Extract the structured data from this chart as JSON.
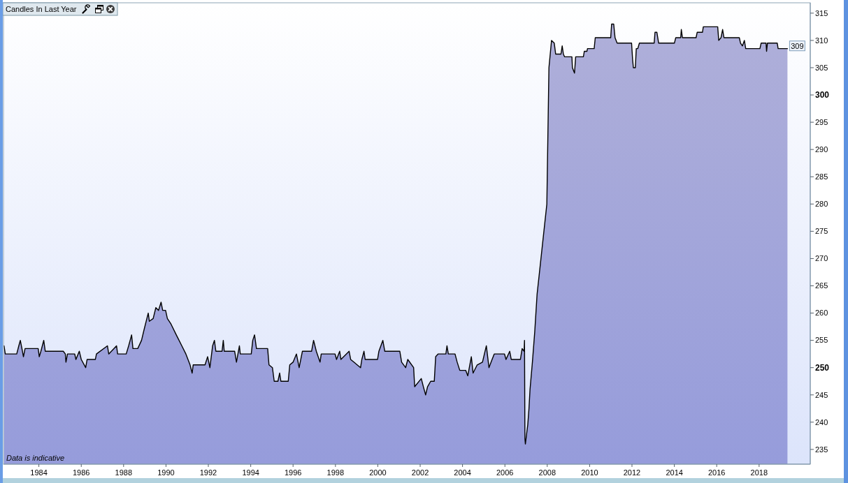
{
  "chart_data": {
    "type": "area",
    "title": "Candles In Last Year",
    "annotations": [
      "Data is indicative",
      {
        "text": "309",
        "x": "2019-05-05",
        "y": 309
      }
    ],
    "xlim": [
      "1982-05-01",
      "2020-06-01"
    ],
    "xticks": [
      "1984",
      "1986",
      "1988",
      "1990",
      "1992",
      "1994",
      "1996",
      "1998",
      "2000",
      "2002",
      "2004",
      "2006",
      "2008",
      "2010",
      "2012",
      "2014",
      "2016",
      "2018"
    ],
    "ylim": [
      232.3,
      316.9
    ],
    "yticks": [
      235,
      240,
      245,
      250,
      255,
      260,
      265,
      270,
      275,
      280,
      285,
      290,
      295,
      300,
      305,
      310,
      315
    ],
    "x": [
      "1982-05-10",
      "1982-06-01",
      "1982-12-15",
      "1983-01-20",
      "1983-02-15",
      "1983-03-15",
      "1983-04-10",
      "1983-05-08",
      "1983-12-20",
      "1984-01-08",
      "1984-02-05",
      "1984-03-25",
      "1984-04-20",
      "1985-02-25",
      "1985-04-01",
      "1985-04-12",
      "1985-05-08",
      "1985-09-10",
      "1985-10-01",
      "1985-11-28",
      "1986-01-01",
      "1986-03-18",
      "1986-04-12",
      "1986-09-01",
      "1986-09-20",
      "1987-03-28",
      "1987-04-20",
      "1987-09-01",
      "1987-09-20",
      "1988-02-15",
      "1988-03-28",
      "1988-05-18",
      "1988-06-10",
      "1988-09-01",
      "1988-11-05",
      "1988-12-20",
      "1989-02-05",
      "1989-03-01",
      "1989-03-20",
      "1989-05-25",
      "1989-07-10",
      "1989-08-25",
      "1989-10-08",
      "1989-11-05",
      "1989-12-25",
      "1990-01-25",
      "1990-03-28",
      "1990-06-28",
      "1990-10-01",
      "1990-12-10",
      "1991-02-20",
      "1991-03-28",
      "1991-04-15",
      "1991-11-05",
      "1991-12-20",
      "1992-01-28",
      "1992-03-15",
      "1992-04-15",
      "1992-05-10",
      "1992-08-25",
      "1992-09-15",
      "1992-10-01",
      "1993-03-30",
      "1993-04-30",
      "1993-06-20",
      "1993-07-05",
      "1994-01-10",
      "1994-02-05",
      "1994-03-08",
      "1994-04-10",
      "1994-10-20",
      "1994-11-12",
      "1995-01-10",
      "1995-02-10",
      "1995-04-15",
      "1995-05-15",
      "1995-06-05",
      "1995-10-10",
      "1995-11-05",
      "1996-01-01",
      "1996-02-28",
      "1996-04-15",
      "1996-06-10",
      "1996-11-15",
      "1996-12-20",
      "1997-02-05",
      "1997-04-10",
      "1997-05-01",
      "1997-12-25",
      "1998-01-20",
      "1998-03-15",
      "1998-04-05",
      "1998-08-25",
      "1998-09-20",
      "1999-03-10",
      "1999-04-01",
      "1999-05-08",
      "1999-05-28",
      "1999-12-28",
      "2000-01-20",
      "2000-03-28",
      "2000-05-01",
      "2001-01-15",
      "2001-02-15",
      "2001-04-25",
      "2001-06-01",
      "2001-09-10",
      "2001-09-28",
      "2002-01-20",
      "2002-02-25",
      "2002-04-05",
      "2002-05-08",
      "2002-07-01",
      "2002-09-01",
      "2002-09-25",
      "2002-11-05",
      "2003-03-20",
      "2003-04-08",
      "2003-05-01",
      "2003-08-25",
      "2003-10-01",
      "2003-11-15",
      "2004-02-25",
      "2004-04-01",
      "2004-06-01",
      "2004-07-01",
      "2004-09-10",
      "2004-12-10",
      "2005-02-15",
      "2005-04-01",
      "2005-05-25",
      "2005-07-01",
      "2005-12-25",
      "2006-01-20",
      "2006-03-25",
      "2006-04-20",
      "2006-09-25",
      "2006-10-25",
      "2006-11-28",
      "2006-12-05",
      "2006-12-12",
      "2006-12-20",
      "2007-01-12",
      "2007-01-30",
      "2007-02-20",
      "2007-03-10",
      "2007-04-20",
      "2007-05-30",
      "2007-07-10",
      "2007-08-15",
      "2007-12-25",
      "2008-01-30",
      "2008-03-15",
      "2008-05-01",
      "2008-05-25",
      "2008-08-25",
      "2008-09-15",
      "2008-10-05",
      "2008-10-25",
      "2009-03-01",
      "2009-03-10",
      "2009-04-15",
      "2009-05-05",
      "2009-09-15",
      "2009-10-01",
      "2009-11-15",
      "2009-11-25",
      "2010-03-20",
      "2010-04-08",
      "2010-12-30",
      "2011-01-15",
      "2011-02-20",
      "2011-03-15",
      "2011-04-20",
      "2011-12-25",
      "2012-01-12",
      "2012-01-25",
      "2012-02-28",
      "2012-03-15",
      "2012-04-10",
      "2012-05-08",
      "2013-01-18",
      "2013-02-01",
      "2013-03-05",
      "2013-04-05",
      "2014-01-01",
      "2014-01-25",
      "2014-04-20",
      "2014-05-01",
      "2014-05-20",
      "2015-01-10",
      "2015-01-30",
      "2015-05-01",
      "2015-05-15",
      "2016-01-18",
      "2016-02-05",
      "2016-03-15",
      "2016-04-12",
      "2016-05-05",
      "2017-01-25",
      "2017-02-15",
      "2017-03-20",
      "2017-04-22",
      "2017-05-15",
      "2018-01-15",
      "2018-02-05",
      "2018-05-01",
      "2018-05-10",
      "2018-05-25",
      "2018-11-10",
      "2018-11-25",
      "2019-05-05"
    ],
    "series": [
      {
        "color": "#a3a6da",
        "values": [
          254,
          252.5,
          252.5,
          254,
          255,
          253.5,
          252,
          253.5,
          253.5,
          252,
          253,
          255,
          253,
          253,
          252.5,
          251,
          252.5,
          252.5,
          251.5,
          253,
          251.5,
          250,
          251.5,
          251.5,
          252.5,
          254,
          252.5,
          254,
          252.5,
          252.5,
          254,
          256,
          253.5,
          253.5,
          255,
          257,
          259,
          260,
          258.5,
          259,
          261,
          260.5,
          262,
          260.5,
          260.5,
          259,
          258,
          256,
          254,
          252.5,
          250.5,
          249,
          250.5,
          250.5,
          252,
          250,
          254,
          255,
          253,
          253,
          255,
          253,
          253,
          251,
          254,
          252.5,
          252.5,
          255,
          256,
          253.5,
          253.5,
          250.5,
          250,
          247.5,
          247.5,
          249,
          247.5,
          247.5,
          250.5,
          251,
          252.5,
          250,
          253,
          253,
          255,
          253,
          251,
          252.5,
          252.5,
          251.5,
          253,
          251.5,
          253,
          251.5,
          250,
          251.5,
          253,
          251.5,
          251.5,
          253,
          255,
          253,
          253,
          251,
          250,
          251.5,
          250,
          246.5,
          248,
          246.5,
          245,
          246.5,
          247.5,
          247.5,
          252,
          252.5,
          252.5,
          254,
          252.5,
          252.5,
          251,
          249.5,
          249.5,
          248.5,
          252,
          249,
          250.5,
          251,
          254,
          250,
          251.5,
          252.5,
          252.5,
          251.5,
          253,
          251.5,
          251.5,
          253.5,
          253,
          255,
          237,
          236,
          238,
          239.5,
          242.5,
          246,
          251,
          256.5,
          263.5,
          267,
          280,
          305,
          310,
          309.5,
          307.5,
          307.5,
          309,
          307.5,
          307,
          307,
          305,
          304,
          307,
          307,
          308,
          308,
          308.5,
          308.5,
          310.5,
          310.5,
          313,
          313,
          310.5,
          309.5,
          309.5,
          306.5,
          305,
          305,
          308.5,
          308.5,
          309.5,
          309.5,
          311.5,
          311.5,
          309.5,
          309.5,
          310.5,
          310.5,
          312,
          310.5,
          310.5,
          311.5,
          311.5,
          312.5,
          312.5,
          310,
          310.5,
          312,
          310.5,
          310.5,
          309.5,
          309,
          310,
          308.5,
          308.5,
          309.5,
          309.5,
          308,
          309.5,
          309.5,
          308.5,
          308.5
        ]
      }
    ]
  }
}
